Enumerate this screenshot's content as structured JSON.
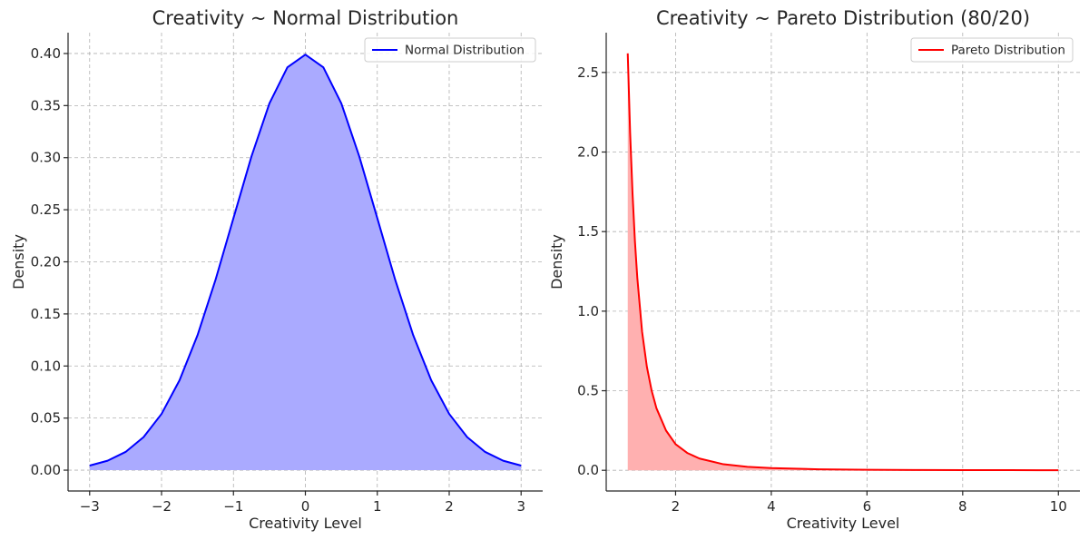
{
  "chart_data": [
    {
      "type": "area",
      "title": "Creativity ~ Normal Distribution",
      "xlabel": "Creativity Level",
      "ylabel": "Density",
      "xlim": [
        -3.3,
        3.3
      ],
      "ylim": [
        -0.02,
        0.42
      ],
      "xticks": [
        -3,
        -2,
        -1,
        0,
        1,
        2,
        3
      ],
      "xtick_labels": [
        "−3",
        "−2",
        "−1",
        "0",
        "1",
        "2",
        "3"
      ],
      "yticks": [
        0.0,
        0.05,
        0.1,
        0.15,
        0.2,
        0.25,
        0.3,
        0.35,
        0.4
      ],
      "ytick_labels": [
        "0.00",
        "0.05",
        "0.10",
        "0.15",
        "0.20",
        "0.25",
        "0.30",
        "0.35",
        "0.40"
      ],
      "grid": true,
      "legend_position": "top-right",
      "series": [
        {
          "name": "Normal Distribution",
          "color": "#0000ff",
          "fill_color": "#aaaaff",
          "x": [
            -3.0,
            -2.75,
            -2.5,
            -2.25,
            -2.0,
            -1.75,
            -1.5,
            -1.25,
            -1.0,
            -0.75,
            -0.5,
            -0.25,
            0.0,
            0.25,
            0.5,
            0.75,
            1.0,
            1.25,
            1.5,
            1.75,
            2.0,
            2.25,
            2.5,
            2.75,
            3.0
          ],
          "y": [
            0.0044,
            0.0091,
            0.0175,
            0.0317,
            0.054,
            0.0863,
            0.1295,
            0.1826,
            0.242,
            0.3011,
            0.3521,
            0.3867,
            0.3989,
            0.3867,
            0.3521,
            0.3011,
            0.242,
            0.1826,
            0.1295,
            0.0863,
            0.054,
            0.0317,
            0.0175,
            0.0091,
            0.0044
          ]
        }
      ]
    },
    {
      "type": "area",
      "title": "Creativity ~ Pareto Distribution (80/20)",
      "xlabel": "Creativity Level",
      "ylabel": "Density",
      "xlim": [
        0.55,
        10.45
      ],
      "ylim": [
        -0.13,
        2.75
      ],
      "xticks": [
        2,
        4,
        6,
        8,
        10
      ],
      "xtick_labels": [
        "2",
        "4",
        "6",
        "8",
        "10"
      ],
      "yticks": [
        0.0,
        0.5,
        1.0,
        1.5,
        2.0,
        2.5
      ],
      "ytick_labels": [
        "0.0",
        "0.5",
        "1.0",
        "1.5",
        "2.0",
        "2.5"
      ],
      "grid": true,
      "legend_position": "top-right",
      "series": [
        {
          "name": "Pareto Distribution",
          "color": "#ff0000",
          "fill_color": "#ffb0b0",
          "x": [
            1.0,
            1.05,
            1.1,
            1.15,
            1.2,
            1.3,
            1.4,
            1.5,
            1.6,
            1.8,
            2.0,
            2.25,
            2.5,
            3.0,
            3.5,
            4.0,
            5.0,
            6.0,
            7.0,
            8.0,
            9.0,
            10.0
          ],
          "y": [
            2.62,
            2.12,
            1.74,
            1.44,
            1.21,
            0.87,
            0.65,
            0.5,
            0.39,
            0.25,
            0.164,
            0.108,
            0.074,
            0.038,
            0.022,
            0.014,
            0.0065,
            0.0035,
            0.0021,
            0.0013,
            0.0009,
            0.0006
          ]
        }
      ]
    }
  ]
}
